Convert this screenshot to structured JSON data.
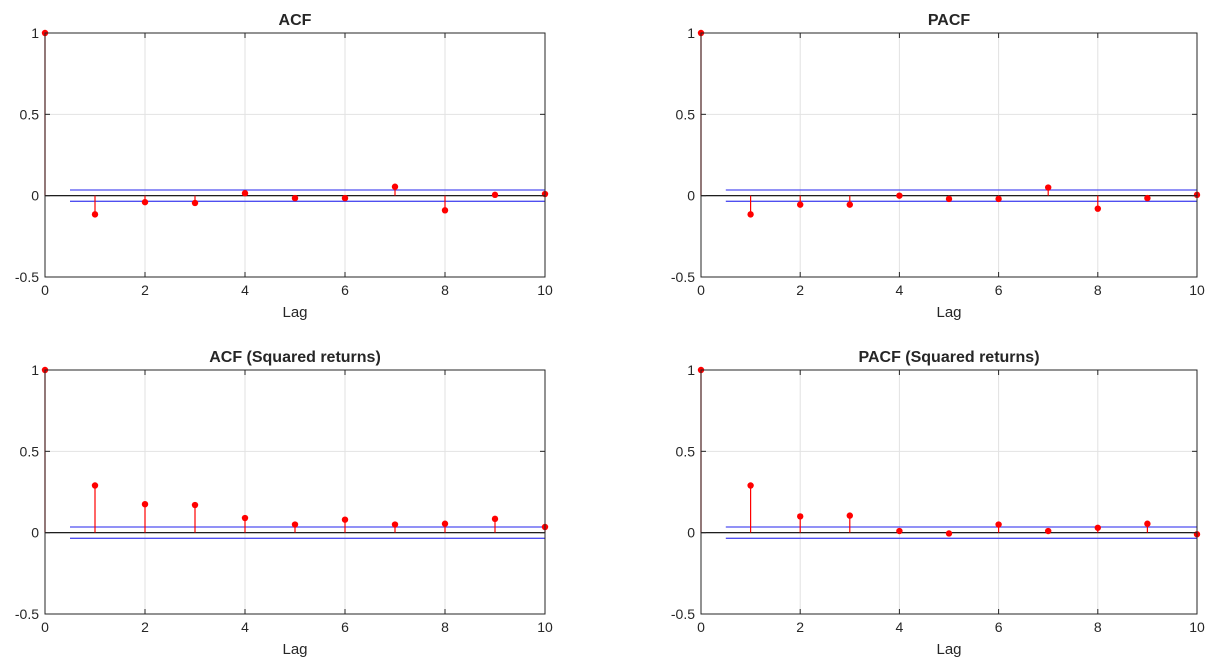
{
  "chart_data": [
    {
      "type": "stem",
      "title": "ACF",
      "xlabel": "Lag",
      "ylabel": "",
      "xlim": [
        0,
        10
      ],
      "ylim": [
        -0.5,
        1
      ],
      "xticks": [
        0,
        2,
        4,
        6,
        8,
        10
      ],
      "yticks": [
        -0.5,
        0,
        0.5,
        1
      ],
      "grid": true,
      "bounds": [
        0.0347,
        -0.0347
      ],
      "x": [
        0,
        1,
        2,
        3,
        4,
        5,
        6,
        7,
        8,
        9,
        10
      ],
      "values": [
        1,
        -0.115,
        -0.04,
        -0.045,
        0.015,
        -0.015,
        -0.015,
        0.055,
        -0.09,
        0.005,
        0.01
      ]
    },
    {
      "type": "stem",
      "title": "PACF",
      "xlabel": "Lag",
      "ylabel": "",
      "xlim": [
        0,
        10
      ],
      "ylim": [
        -0.5,
        1
      ],
      "xticks": [
        0,
        2,
        4,
        6,
        8,
        10
      ],
      "yticks": [
        -0.5,
        0,
        0.5,
        1
      ],
      "grid": true,
      "bounds": [
        0.0347,
        -0.0347
      ],
      "x": [
        0,
        1,
        2,
        3,
        4,
        5,
        6,
        7,
        8,
        9,
        10
      ],
      "values": [
        1,
        -0.115,
        -0.055,
        -0.055,
        0,
        -0.02,
        -0.02,
        0.05,
        -0.08,
        -0.015,
        0.005
      ]
    },
    {
      "type": "stem",
      "title": "ACF (Squared returns)",
      "xlabel": "Lag",
      "ylabel": "",
      "xlim": [
        0,
        10
      ],
      "ylim": [
        -0.5,
        1
      ],
      "xticks": [
        0,
        2,
        4,
        6,
        8,
        10
      ],
      "yticks": [
        -0.5,
        0,
        0.5,
        1
      ],
      "grid": true,
      "bounds": [
        0.0347,
        -0.0347
      ],
      "x": [
        0,
        1,
        2,
        3,
        4,
        5,
        6,
        7,
        8,
        9,
        10
      ],
      "values": [
        1,
        0.29,
        0.175,
        0.17,
        0.09,
        0.05,
        0.08,
        0.05,
        0.055,
        0.085,
        0.035
      ]
    },
    {
      "type": "stem",
      "title": "PACF (Squared returns)",
      "xlabel": "Lag",
      "ylabel": "",
      "xlim": [
        0,
        10
      ],
      "ylim": [
        -0.5,
        1
      ],
      "xticks": [
        0,
        2,
        4,
        6,
        8,
        10
      ],
      "yticks": [
        -0.5,
        0,
        0.5,
        1
      ],
      "grid": true,
      "bounds": [
        0.0347,
        -0.0347
      ],
      "x": [
        0,
        1,
        2,
        3,
        4,
        5,
        6,
        7,
        8,
        9,
        10
      ],
      "values": [
        1,
        0.29,
        0.1,
        0.105,
        0.01,
        -0.005,
        0.05,
        0.01,
        0.03,
        0.055,
        -0.01
      ]
    }
  ],
  "colors": {
    "stem": "#ff0000",
    "marker": "#ff0000",
    "bound": "#4f4ff0",
    "zero_line": "#000000",
    "grid": "#e2e2e2",
    "axes": "#262626",
    "text": "#262626"
  }
}
